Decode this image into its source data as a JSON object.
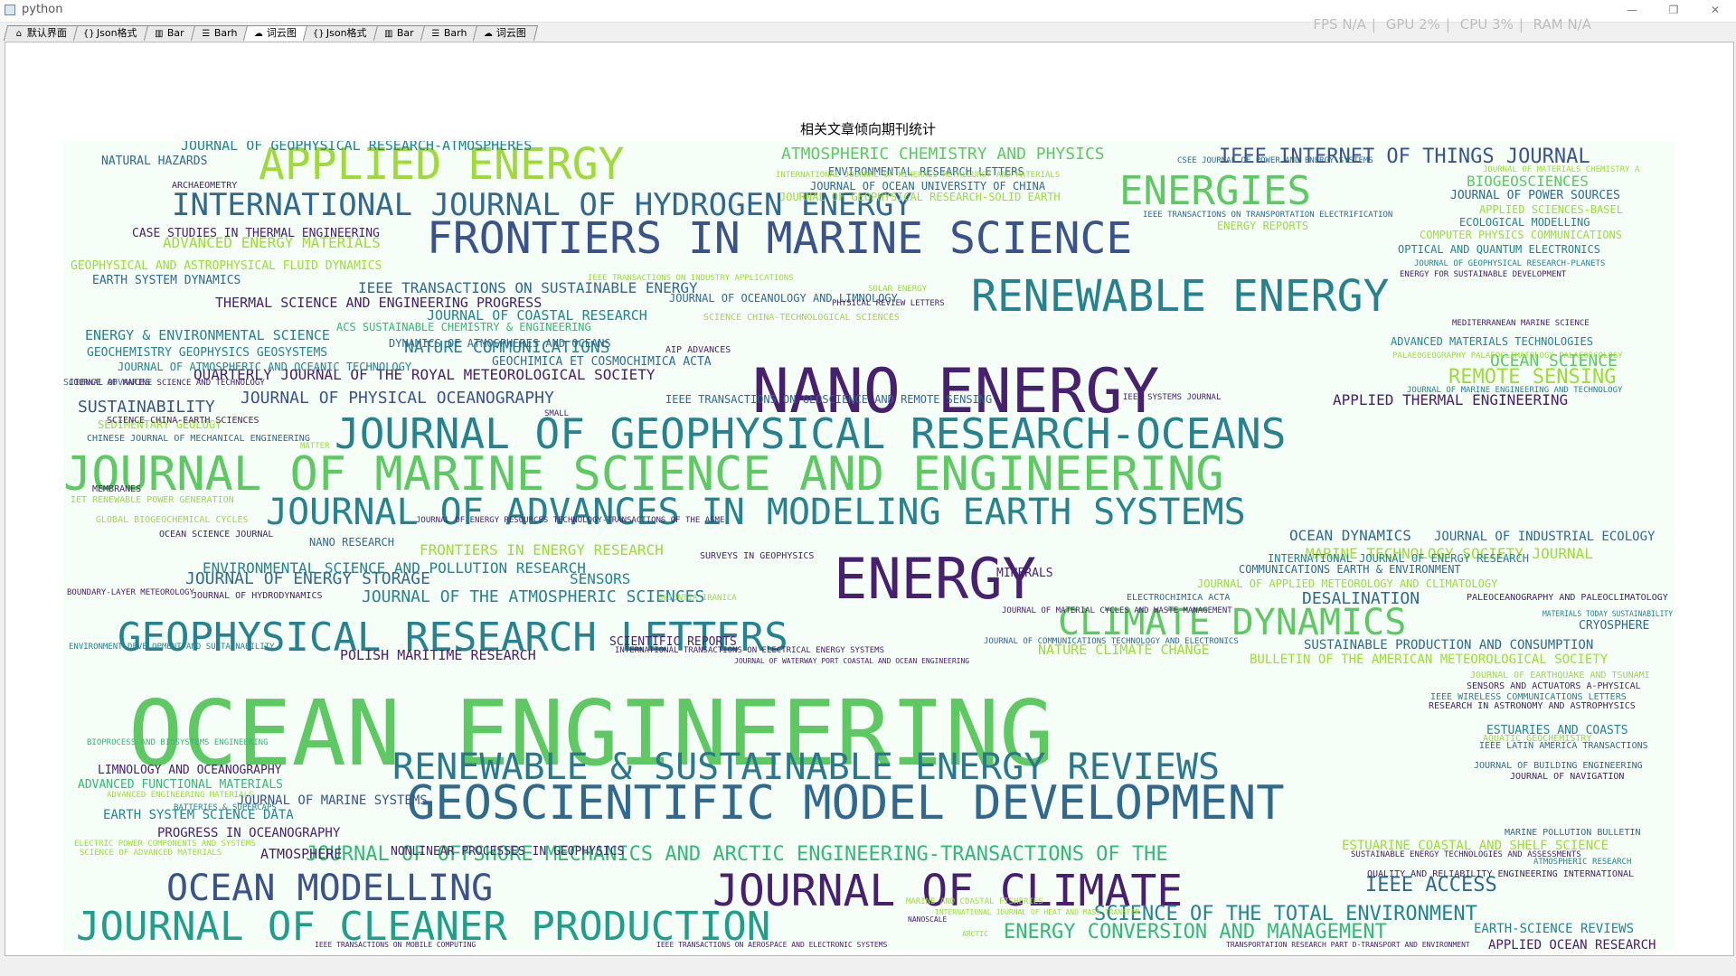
{
  "window": {
    "title": "python"
  },
  "stats": {
    "fps": "FPS N/A",
    "gpu": "GPU 2%",
    "cpu": "CPU 3%",
    "ram": "RAM N/A"
  },
  "tabs": [
    {
      "label": "默认界面",
      "icon": "home-icon"
    },
    {
      "label": "Json格式",
      "icon": "braces-icon"
    },
    {
      "label": "Bar",
      "icon": "bar-chart-icon"
    },
    {
      "label": "Barh",
      "icon": "barh-chart-icon"
    },
    {
      "label": "词云图",
      "icon": "cloud-icon"
    },
    {
      "label": "Json格式",
      "icon": "braces-icon"
    },
    {
      "label": "Bar",
      "icon": "bar-chart-icon"
    },
    {
      "label": "Barh",
      "icon": "barh-chart-icon"
    },
    {
      "label": "词云图",
      "icon": "cloud-icon"
    }
  ],
  "active_tab_index": 4,
  "colors": {
    "background": "#f5fff8",
    "dark_purple": "#482070",
    "teal": "#26828e",
    "blue": "#31688e",
    "green": "#35b779",
    "light_green": "#5ec962",
    "yellow_green": "#a0da39"
  },
  "chart_data": {
    "type": "wordcloud",
    "title": "相关文章倾向期刊统计",
    "words": [
      {
        "text": "OCEAN ENGINEERING",
        "size": 100,
        "color": "#5ec962"
      },
      {
        "text": "NANO ENERGY",
        "size": 68,
        "color": "#482070"
      },
      {
        "text": "ENERGY",
        "size": 62,
        "color": "#482070"
      },
      {
        "text": "JOURNAL OF MARINE SCIENCE AND ENGINEERING",
        "size": 52,
        "color": "#5ec962"
      },
      {
        "text": "GEOSCIENTIFIC MODEL DEVELOPMENT",
        "size": 52,
        "color": "#31688e"
      },
      {
        "text": "APPLIED ENERGY",
        "size": 48,
        "color": "#a0da39"
      },
      {
        "text": "FRONTIERS IN MARINE SCIENCE",
        "size": 48,
        "color": "#3b528b"
      },
      {
        "text": "RENEWABLE ENERGY",
        "size": 48,
        "color": "#26828e"
      },
      {
        "text": "JOURNAL OF CLIMATE",
        "size": 48,
        "color": "#482070"
      },
      {
        "text": "JOURNAL OF GEOPHYSICAL RESEARCH-OCEANS",
        "size": 46,
        "color": "#26828e"
      },
      {
        "text": "GEOPHYSICAL RESEARCH LETTERS",
        "size": 44,
        "color": "#26828e"
      },
      {
        "text": "JOURNAL OF CLEANER PRODUCTION",
        "size": 44,
        "color": "#1f9e89"
      },
      {
        "text": "ENERGIES",
        "size": 44,
        "color": "#5ec962"
      },
      {
        "text": "JOURNAL OF ADVANCES IN MODELING EARTH SYSTEMS",
        "size": 40,
        "color": "#26828e"
      },
      {
        "text": "RENEWABLE & SUSTAINABLE ENERGY REVIEWS",
        "size": 40,
        "color": "#2a788e"
      },
      {
        "text": "OCEAN MODELLING",
        "size": 40,
        "color": "#3b528b"
      },
      {
        "text": "CLIMATE DYNAMICS",
        "size": 40,
        "color": "#5ec962"
      },
      {
        "text": "INTERNATIONAL JOURNAL OF HYDROGEN ENERGY",
        "size": 34,
        "color": "#31688e"
      },
      {
        "text": "JOURNAL OF OFFSHORE MECHANICS AND ARCTIC ENGINEERING-TRANSACTIONS OF THE",
        "size": 22,
        "color": "#35b779"
      },
      {
        "text": "IEEE INTERNET OF THINGS JOURNAL",
        "size": 22,
        "color": "#3b528b"
      },
      {
        "text": "SCIENCE OF THE TOTAL ENVIRONMENT",
        "size": 22,
        "color": "#26828e"
      },
      {
        "text": "ENERGY CONVERSION AND MANAGEMENT",
        "size": 22,
        "color": "#35b779"
      },
      {
        "text": "IEEE ACCESS",
        "size": 22,
        "color": "#31688e"
      },
      {
        "text": "NATURE COMMUNICATIONS",
        "size": 18,
        "color": "#26828e"
      },
      {
        "text": "ATMOSPHERIC CHEMISTRY AND PHYSICS",
        "size": 18,
        "color": "#5ec962"
      },
      {
        "text": "JOURNAL OF THE ATMOSPHERIC SCIENCES",
        "size": 18,
        "color": "#26828e"
      },
      {
        "text": "JOURNAL OF PHYSICAL OCEANOGRAPHY",
        "size": 18,
        "color": "#3b528b"
      },
      {
        "text": "JOURNAL OF ENERGY STORAGE",
        "size": 18,
        "color": "#31688e"
      },
      {
        "text": "REMOTE SENSING",
        "size": 22,
        "color": "#a0da39"
      },
      {
        "text": "OCEAN SCIENCE",
        "size": 18,
        "color": "#5ec962"
      },
      {
        "text": "SUSTAINABILITY",
        "size": 18,
        "color": "#3b528b"
      },
      {
        "text": "DESALINATION",
        "size": 18,
        "color": "#31688e"
      },
      {
        "text": "OCEAN DYNAMICS",
        "size": 16,
        "color": "#31688e"
      },
      {
        "text": "BIOGEOSCIENCES",
        "size": 16,
        "color": "#5ec962"
      },
      {
        "text": "MARINE TECHNOLOGY SOCIETY JOURNAL",
        "size": 16,
        "color": "#a0da39"
      },
      {
        "text": "ENVIRONMENTAL SCIENCE AND POLLUTION RESEARCH",
        "size": 16,
        "color": "#26828e"
      },
      {
        "text": "FRONTIERS IN ENERGY RESEARCH",
        "size": 16,
        "color": "#a0da39"
      },
      {
        "text": "IEEE TRANSACTIONS ON SUSTAINABLE ENERGY",
        "size": 16,
        "color": "#31688e"
      },
      {
        "text": "APPLIED THERMAL ENGINEERING",
        "size": 16,
        "color": "#482070"
      },
      {
        "text": "QUARTERLY JOURNAL OF THE ROYAL METEOROLOGICAL SOCIETY",
        "size": 16,
        "color": "#482070"
      },
      {
        "text": "JOURNAL OF GEOPHYSICAL RESEARCH-ATMOSPHERES",
        "size": 15,
        "color": "#26828e"
      },
      {
        "text": "ADVANCED ENERGY MATERIALS",
        "size": 16,
        "color": "#a0da39"
      },
      {
        "text": "THERMAL SCIENCE AND ENGINEERING PROGRESS",
        "size": 15,
        "color": "#482070"
      },
      {
        "text": "ENERGY & ENVIRONMENTAL SCIENCE",
        "size": 15,
        "color": "#26828e"
      },
      {
        "text": "JOURNAL OF COASTAL RESEARCH",
        "size": 15,
        "color": "#26828e"
      },
      {
        "text": "NATURE CLIMATE CHANGE",
        "size": 15,
        "color": "#a0da39"
      },
      {
        "text": "POLISH MARITIME RESEARCH",
        "size": 15,
        "color": "#482070"
      },
      {
        "text": "SENSORS",
        "size": 16,
        "color": "#26828e"
      },
      {
        "text": "SUSTAINABLE PRODUCTION AND CONSUMPTION",
        "size": 14,
        "color": "#31688e"
      },
      {
        "text": "BULLETIN OF THE AMERICAN METEOROLOGICAL SOCIETY",
        "size": 14,
        "color": "#a0da39"
      },
      {
        "text": "JOURNAL OF INDUSTRIAL ECOLOGY",
        "size": 14,
        "color": "#31688e"
      },
      {
        "text": "ESTUARINE COASTAL AND SHELF SCIENCE",
        "size": 14,
        "color": "#a0da39"
      },
      {
        "text": "EARTH SYSTEM SCIENCE DATA",
        "size": 14,
        "color": "#26828e"
      },
      {
        "text": "PROGRESS IN OCEANOGRAPHY",
        "size": 14,
        "color": "#482070"
      },
      {
        "text": "JOURNAL OF MARINE SYSTEMS",
        "size": 14,
        "color": "#3b528b"
      },
      {
        "text": "ATMOSPHERE",
        "size": 15,
        "color": "#482070"
      },
      {
        "text": "NONLINEAR PROCESSES IN GEOPHYSICS",
        "size": 13,
        "color": "#482070"
      },
      {
        "text": "ADVANCED FUNCTIONAL MATERIALS",
        "size": 13,
        "color": "#35b779"
      },
      {
        "text": "LIMNOLOGY AND OCEANOGRAPHY",
        "size": 13,
        "color": "#482070"
      },
      {
        "text": "EARTH-SCIENCE REVIEWS",
        "size": 14,
        "color": "#26828e"
      },
      {
        "text": "APPLIED OCEAN RESEARCH",
        "size": 14,
        "color": "#482070"
      },
      {
        "text": "ESTUARIES AND COASTS",
        "size": 13,
        "color": "#26828e"
      },
      {
        "text": "CRYOSPHERE",
        "size": 13,
        "color": "#31688e"
      },
      {
        "text": "MINERALS",
        "size": 13,
        "color": "#482070"
      },
      {
        "text": "SCIENTIFIC REPORTS",
        "size": 13,
        "color": "#482070"
      },
      {
        "text": "GEOCHEMISTRY GEOPHYSICS GEOSYSTEMS",
        "size": 13,
        "color": "#26828e"
      },
      {
        "text": "GEOCHIMICA ET COSMOCHIMICA ACTA",
        "size": 13,
        "color": "#31688e"
      },
      {
        "text": "CASE STUDIES IN THERMAL ENGINEERING",
        "size": 13,
        "color": "#482070"
      },
      {
        "text": "NATURAL HAZARDS",
        "size": 13,
        "color": "#31688e"
      },
      {
        "text": "GEOPHYSICAL AND ASTROPHYSICAL FLUID DYNAMICS",
        "size": 13,
        "color": "#a0da39"
      },
      {
        "text": "EARTH SYSTEM DYNAMICS",
        "size": 13,
        "color": "#31688e"
      },
      {
        "text": "JOURNAL OF ATMOSPHERIC AND OCEANIC TECHNOLOGY",
        "size": 12,
        "color": "#26828e"
      },
      {
        "text": "DYNAMICS OF ATMOSPHERES AND OCEANS",
        "size": 12,
        "color": "#31688e"
      },
      {
        "text": "ACS SUSTAINABLE CHEMISTRY & ENGINEERING",
        "size": 12,
        "color": "#35b779"
      },
      {
        "text": "JOURNAL OF OCEANOLOGY AND LIMNOLOGY",
        "size": 12,
        "color": "#31688e"
      },
      {
        "text": "JOURNAL OF OCEAN UNIVERSITY OF CHINA",
        "size": 12,
        "color": "#31688e"
      },
      {
        "text": "ENVIRONMENTAL RESEARCH LETTERS",
        "size": 12,
        "color": "#31688e"
      },
      {
        "text": "JOURNAL OF GEOPHYSICAL RESEARCH-SOLID EARTH",
        "size": 12,
        "color": "#a0da39"
      },
      {
        "text": "IEEE TRANSACTIONS ON GEOSCIENCE AND REMOTE SENSING",
        "size": 12,
        "color": "#31688e"
      },
      {
        "text": "JOURNAL OF POWER SOURCES",
        "size": 13,
        "color": "#31688e"
      },
      {
        "text": "APPLIED SCIENCES-BASEL",
        "size": 12,
        "color": "#a0da39"
      },
      {
        "text": "ECOLOGICAL MODELLING",
        "size": 12,
        "color": "#26828e"
      },
      {
        "text": "COMPUTER PHYSICS COMMUNICATIONS",
        "size": 12,
        "color": "#a0da39"
      },
      {
        "text": "OPTICAL AND QUANTUM ELECTRONICS",
        "size": 12,
        "color": "#26828e"
      },
      {
        "text": "ENERGY REPORTS",
        "size": 12,
        "color": "#a0da39"
      },
      {
        "text": "ADVANCED MATERIALS TECHNOLOGIES",
        "size": 12,
        "color": "#26828e"
      },
      {
        "text": "COMMUNICATIONS EARTH & ENVIRONMENT",
        "size": 12,
        "color": "#31688e"
      },
      {
        "text": "INTERNATIONAL JOURNAL OF ENERGY RESEARCH",
        "size": 12,
        "color": "#26828e"
      },
      {
        "text": "JOURNAL OF APPLIED METEOROLOGY AND CLIMATOLOGY",
        "size": 12,
        "color": "#a0da39"
      },
      {
        "text": "SEDIMENTARY GEOLOGY",
        "size": 12,
        "color": "#a0da39"
      },
      {
        "text": "CHINESE JOURNAL OF MECHANICAL ENGINEERING",
        "size": 10,
        "color": "#31688e"
      },
      {
        "text": "NANO RESEARCH",
        "size": 12,
        "color": "#31688e"
      },
      {
        "text": "IET RENEWABLE POWER GENERATION",
        "size": 10,
        "color": "#a0da39"
      },
      {
        "text": "JOURNAL OF HYDRODYNAMICS",
        "size": 10,
        "color": "#482070"
      },
      {
        "text": "AIP ADVANCES",
        "size": 10,
        "color": "#482070"
      },
      {
        "text": "SCIENCE ADVANCES",
        "size": 10,
        "color": "#31688e"
      },
      {
        "text": "SCIENCE CHINA-EARTH SCIENCES",
        "size": 10,
        "color": "#482070"
      },
      {
        "text": "ARCHAEOMETRY",
        "size": 10,
        "color": "#482070"
      },
      {
        "text": "MEMBRANES",
        "size": 10,
        "color": "#482070"
      },
      {
        "text": "OCEAN SCIENCE JOURNAL",
        "size": 10,
        "color": "#482070"
      },
      {
        "text": "ELECTROCHIMICA ACTA",
        "size": 10,
        "color": "#31688e"
      },
      {
        "text": "PALEOCEANOGRAPHY AND PALEOCLIMATOLOGY",
        "size": 10,
        "color": "#482070"
      },
      {
        "text": "IEEE WIRELESS COMMUNICATIONS LETTERS",
        "size": 10,
        "color": "#26828e"
      },
      {
        "text": "RESEARCH IN ASTRONOMY AND ASTROPHYSICS",
        "size": 10,
        "color": "#482070"
      },
      {
        "text": "SENSORS AND ACTUATORS A-PHYSICAL",
        "size": 10,
        "color": "#482070"
      },
      {
        "text": "JOURNAL OF BUILDING ENGINEERING",
        "size": 10,
        "color": "#31688e"
      },
      {
        "text": "JOURNAL OF NAVIGATION",
        "size": 10,
        "color": "#482070"
      },
      {
        "text": "IEEE LATIN AMERICA TRANSACTIONS",
        "size": 10,
        "color": "#31688e"
      },
      {
        "text": "MARINE POLLUTION BULLETIN",
        "size": 10,
        "color": "#31688e"
      },
      {
        "text": "QUALITY AND RELIABILITY ENGINEERING INTERNATIONAL",
        "size": 10,
        "color": "#482070"
      },
      {
        "text": "AQUATIC GEOCHEMISTRY",
        "size": 10,
        "color": "#a0da39"
      },
      {
        "text": "JOURNAL OF EARTHQUAKE AND TSUNAMI",
        "size": 10,
        "color": "#a0da39"
      },
      {
        "text": "SCIENCE CHINA-TECHNOLOGICAL SCIENCES",
        "size": 10,
        "color": "#a0da39"
      },
      {
        "text": "GLOBAL BIOGEOCHEMICAL CYCLES",
        "size": 10,
        "color": "#a0da39"
      },
      {
        "text": "SURVEYS IN GEOPHYSICS",
        "size": 10,
        "color": "#482070"
      },
      {
        "text": "JOURNAL OF ENERGY RESOURCES TECHNOLOGY-TRANSACTIONS OF THE ASME",
        "size": 9,
        "color": "#482070"
      },
      {
        "text": "INTERNATIONAL TRANSACTIONS ON ELECTRICAL ENERGY SYSTEMS",
        "size": 9,
        "color": "#482070"
      },
      {
        "text": "JOURNAL OF COMMUNICATIONS TECHNOLOGY AND ELECTRONICS",
        "size": 9,
        "color": "#31688e"
      },
      {
        "text": "JOURNAL OF MATERIAL CYCLES AND WASTE MANAGEMENT",
        "size": 9,
        "color": "#482070"
      },
      {
        "text": "ENVIRONMENT DEVELOPMENT AND SUSTAINABILITY",
        "size": 9,
        "color": "#26828e"
      },
      {
        "text": "BOUNDARY-LAYER METEOROLOGY",
        "size": 9,
        "color": "#482070"
      },
      {
        "text": "CSEE JOURNAL OF POWER AND ENERGY SYSTEMS",
        "size": 9,
        "color": "#31688e"
      },
      {
        "text": "JOURNAL OF GEOPHYSICAL RESEARCH-PLANETS",
        "size": 9,
        "color": "#26828e"
      },
      {
        "text": "ENERGY FOR SUSTAINABLE DEVELOPMENT",
        "size": 9,
        "color": "#482070"
      },
      {
        "text": "MEDITERRANEAN MARINE SCIENCE",
        "size": 9,
        "color": "#482070"
      },
      {
        "text": "PALAEOGEOGRAPHY PALAEOCLIMATOLOGY PALAEOECOLOGY",
        "size": 9,
        "color": "#a0da39"
      },
      {
        "text": "JOURNAL OF MARINE ENGINEERING AND TECHNOLOGY",
        "size": 9,
        "color": "#26828e"
      },
      {
        "text": "IEEE SYSTEMS JOURNAL",
        "size": 9,
        "color": "#482070"
      },
      {
        "text": "MATERIALS TODAY SUSTAINABILITY",
        "size": 9,
        "color": "#26828e"
      },
      {
        "text": "BIOPROCESS AND BIOSYSTEMS ENGINEERING",
        "size": 9,
        "color": "#35b779"
      },
      {
        "text": "ADVANCED ENGINEERING MATERIALS",
        "size": 9,
        "color": "#a0da39"
      },
      {
        "text": "BATTERIES & SUPERCAPS",
        "size": 9,
        "color": "#26828e"
      },
      {
        "text": "ELECTRIC POWER COMPONENTS AND SYSTEMS",
        "size": 9,
        "color": "#a0da39"
      },
      {
        "text": "SCIENCE OF ADVANCED MATERIALS",
        "size": 9,
        "color": "#a0da39"
      },
      {
        "text": "MARINE AND COASTAL FISHERIES",
        "size": 9,
        "color": "#a0da39"
      },
      {
        "text": "ATMOSPHERIC RESEARCH",
        "size": 9,
        "color": "#26828e"
      },
      {
        "text": "SUSTAINABLE ENERGY TECHNOLOGIES AND ASSESSMENTS",
        "size": 9,
        "color": "#482070"
      },
      {
        "text": "SMALL",
        "size": 9,
        "color": "#482070"
      },
      {
        "text": "MATTER",
        "size": 9,
        "color": "#a0da39"
      },
      {
        "text": "SOLAR ENERGY",
        "size": 9,
        "color": "#a0da39"
      },
      {
        "text": "PHYSICAL REVIEW LETTERS",
        "size": 9,
        "color": "#482070"
      },
      {
        "text": "SCIENTIA IRANICA",
        "size": 9,
        "color": "#a0da39"
      },
      {
        "text": "IEEE TRANSACTIONS ON INDUSTRY APPLICATIONS",
        "size": 9,
        "color": "#a0da39"
      },
      {
        "text": "JOURNAL OF MARINE SCIENCE AND TECHNOLOGY",
        "size": 9,
        "color": "#482070"
      },
      {
        "text": "INTERNATIONAL JOURNAL OF MINERALS METALLURGY AND MATERIALS",
        "size": 9,
        "color": "#a0da39"
      },
      {
        "text": "IEEE TRANSACTIONS ON TRANSPORTATION ELECTRIFICATION",
        "size": 9,
        "color": "#31688e"
      },
      {
        "text": "JOURNAL OF MATERIALS CHEMISTRY A",
        "size": 9,
        "color": "#a0da39"
      },
      {
        "text": "IEEE TRANSACTIONS ON MOBILE COMPUTING",
        "size": 8,
        "color": "#482070"
      },
      {
        "text": "IEEE TRANSACTIONS ON AEROSPACE AND ELECTRONIC SYSTEMS",
        "size": 8,
        "color": "#482070"
      },
      {
        "text": "TRANSPORTATION RESEARCH PART D-TRANSPORT AND ENVIRONMENT",
        "size": 8,
        "color": "#482070"
      },
      {
        "text": "JOURNAL OF WATERWAY PORT COASTAL AND OCEAN ENGINEERING",
        "size": 8,
        "color": "#482070"
      },
      {
        "text": "INTERNATIONAL JOURNAL OF HEAT AND MASS TRANSFER",
        "size": 8,
        "color": "#a0da39"
      },
      {
        "text": "NANOSCALE",
        "size": 8,
        "color": "#482070"
      },
      {
        "text": "ARCTIC",
        "size": 8,
        "color": "#a0da39"
      }
    ]
  }
}
